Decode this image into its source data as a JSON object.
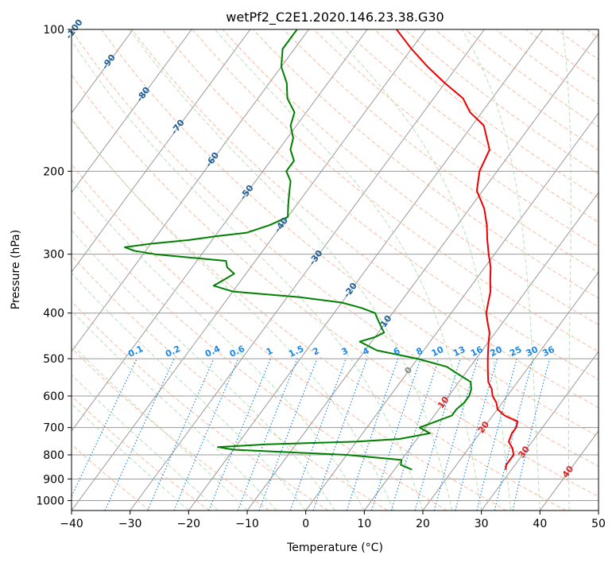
{
  "chart_data": {
    "type": "line",
    "subtype": "skew-t log-p",
    "title": "wetPf2_C2E1.2020.146.23.38.G30",
    "xlabel": "Temperature (°C)",
    "ylabel": "Pressure (hPa)",
    "xlim": [
      -40,
      50
    ],
    "ylim": [
      1050,
      100
    ],
    "y_scale": "log",
    "grid": true,
    "x_ticks": [
      -40,
      -30,
      -20,
      -10,
      0,
      10,
      20,
      30,
      40,
      50
    ],
    "y_ticks": [
      100,
      200,
      300,
      400,
      500,
      600,
      700,
      800,
      900,
      1000
    ],
    "colors": {
      "temperature": "#ee0000",
      "dewpoint": "#008000",
      "isotherm": "#999999",
      "dry_adiabat": "#f4a582",
      "moist_adiabat": "#a6d9a6",
      "mixing_ratio": "#1e88e5",
      "isotherm_labels": "#1f5f99",
      "theta_e_labels": "#d62728"
    },
    "series": [
      {
        "color": "#ee0000",
        "pressure": [
          860,
          840,
          800,
          775,
          750,
          720,
          700,
          680,
          660,
          640,
          620,
          600,
          580,
          560,
          540,
          520,
          500,
          480,
          460,
          440,
          420,
          400,
          380,
          360,
          340,
          320,
          300,
          280,
          260,
          240,
          220,
          200,
          180,
          160,
          150,
          140,
          130,
          120,
          110,
          100
        ],
        "temperature": [
          29,
          28.5,
          28.5,
          27.5,
          26,
          25.5,
          25.5,
          25,
          22,
          20,
          19,
          17.5,
          16.5,
          15,
          14,
          13,
          12,
          11,
          10,
          9,
          7.5,
          6,
          5,
          4,
          2.5,
          1,
          -1,
          -3,
          -5,
          -7.5,
          -11,
          -13,
          -14,
          -18,
          -22,
          -25,
          -30,
          -35,
          -40,
          -45
        ]
      },
      {
        "color": "#008000",
        "pressure": [
          860,
          840,
          820,
          800,
          790,
          780,
          770,
          760,
          750,
          740,
          720,
          700,
          680,
          660,
          640,
          620,
          600,
          580,
          560,
          540,
          520,
          500,
          480,
          460,
          450,
          440,
          430,
          420,
          410,
          400,
          390,
          380,
          370,
          360,
          350,
          340,
          330,
          320,
          310,
          300,
          295,
          290,
          285,
          280,
          275,
          270,
          260,
          250,
          240,
          230,
          220,
          210,
          200,
          190,
          180,
          170,
          160,
          150,
          140,
          130,
          120,
          110,
          100
        ],
        "dewpoint": [
          13,
          10.5,
          10,
          0,
          -10,
          -20,
          -23,
          -15,
          0,
          7,
          11.5,
          9,
          11,
          13,
          13,
          13.5,
          13.5,
          13,
          12,
          9,
          6,
          0,
          -8,
          -12,
          -10,
          -9,
          -10,
          -11,
          -12,
          -13,
          -16,
          -20,
          -28,
          -40,
          -44,
          -43,
          -42,
          -44,
          -45,
          -58,
          -62,
          -64,
          -60,
          -54,
          -50,
          -45,
          -42,
          -40,
          -41,
          -42,
          -43,
          -44,
          -46,
          -46,
          -48,
          -49,
          -51,
          -52,
          -55,
          -57,
          -60,
          -62,
          -62
        ]
      }
    ],
    "isotherm_labels": [
      "-100",
      "-90",
      "-80",
      "-70",
      "-60",
      "-50",
      "-40",
      "-30",
      "-20",
      "-10",
      "0",
      "10",
      "20",
      "30",
      "40"
    ],
    "mixing_ratio_labels": [
      "0.1",
      "0.2",
      "0.4",
      "0.6",
      "1",
      "1.5",
      "2",
      "3",
      "4",
      "6",
      "8",
      "10",
      "13",
      "16",
      "20",
      "25",
      "30",
      "36"
    ]
  }
}
